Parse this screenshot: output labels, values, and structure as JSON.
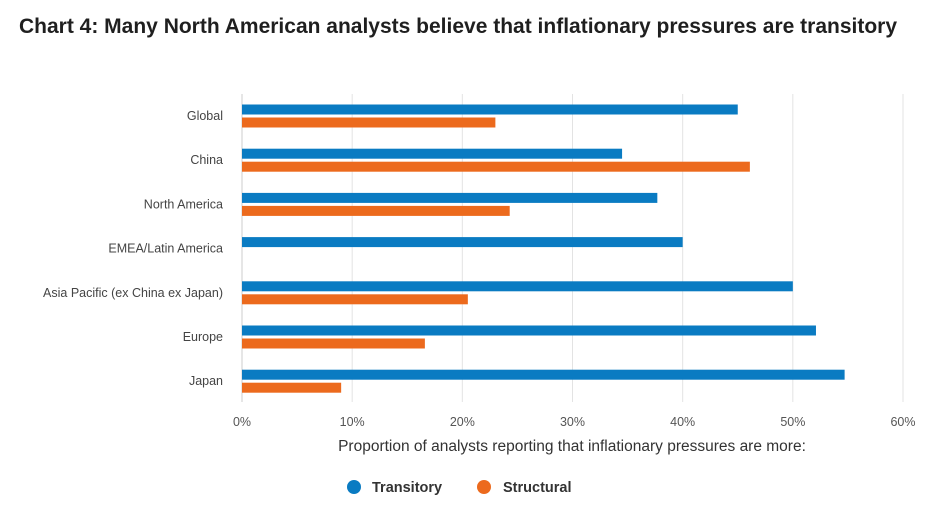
{
  "title": "Chart 4: Many North American analysts believe that inflationary pressures are transitory",
  "chart_data": {
    "type": "bar",
    "orientation": "horizontal",
    "title": "Chart 4: Many North American analysts believe that inflationary pressures are transitory",
    "xlabel": "Proportion of analysts reporting that inflationary pressures are more:",
    "ylabel": "",
    "categories": [
      "Global",
      "China",
      "North America",
      "EMEA/Latin America",
      "Asia Pacific (ex China ex Japan)",
      "Europe",
      "Japan"
    ],
    "series": [
      {
        "name": "Transitory",
        "color": "#0a7bc2",
        "values": [
          45,
          34.5,
          37.7,
          40,
          50,
          52.1,
          54.7
        ]
      },
      {
        "name": "Structural",
        "color": "#ec6a1d",
        "values": [
          23,
          46.1,
          24.3,
          null,
          20.5,
          16.6,
          9
        ]
      }
    ],
    "xlim": [
      0,
      60
    ],
    "xticks": [
      "0%",
      "10%",
      "20%",
      "30%",
      "40%",
      "50%",
      "60%"
    ],
    "grid": true,
    "legend_position": "bottom"
  }
}
